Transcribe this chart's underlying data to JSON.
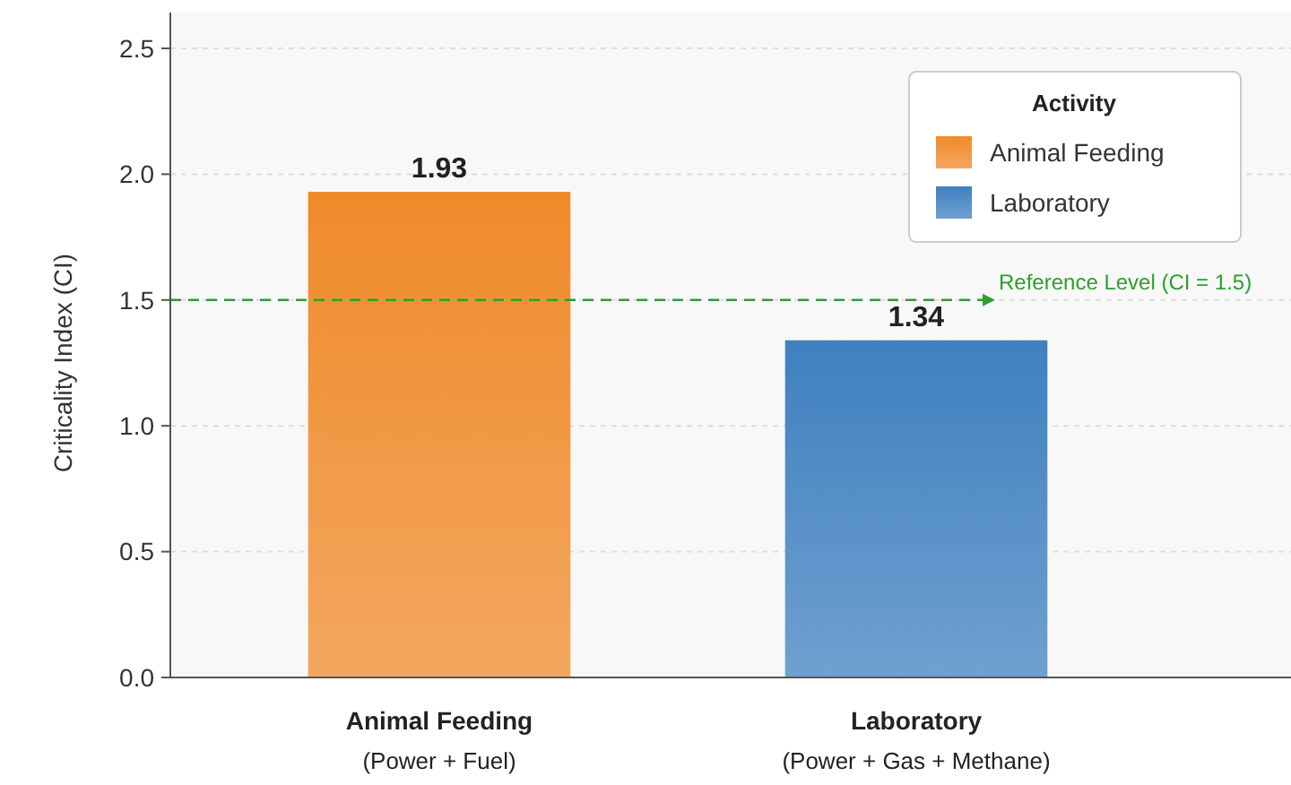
{
  "chart_data": {
    "type": "bar",
    "ylabel": "Criticality Index (CI)",
    "categories": [
      "Animal Feeding\n(Power + Fuel)",
      "Laboratory\n(Power + Gas + Methane)"
    ],
    "series": [
      {
        "name": "Animal Feeding",
        "color": "#ef8a2a",
        "values": [
          1.93,
          null
        ]
      },
      {
        "name": "Laboratory",
        "color": "#3f80c0",
        "values": [
          null,
          1.34
        ]
      }
    ],
    "ylim": [
      0,
      2.5
    ],
    "yticks": [
      {
        "value": 0,
        "label": "0.0"
      },
      {
        "value": 0.5,
        "label": "0.5"
      },
      {
        "value": 1,
        "label": "1.0"
      },
      {
        "value": 1.5,
        "label": "1.5"
      },
      {
        "value": 2,
        "label": "2.0"
      },
      {
        "value": 2.5,
        "label": "2.5"
      }
    ],
    "grid": "y",
    "legend": "top right",
    "legend_title": "Activity",
    "data_labels": true,
    "ref_lines": [
      {
        "axis": "y",
        "value": 1.5,
        "label": "Reference Level (CI = 1.5)",
        "color": "#2ca02c",
        "line_style": "dashed"
      }
    ]
  }
}
